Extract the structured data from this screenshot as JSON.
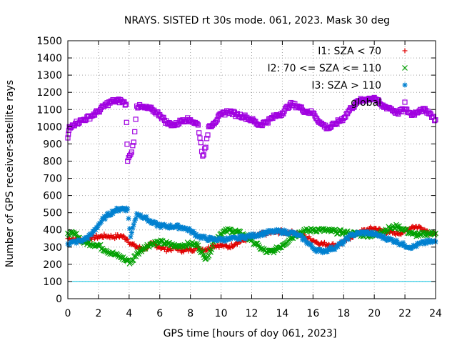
{
  "chart_data": {
    "type": "scatter",
    "title": "NRAYS. SISTED rt 30s mode. 061, 2023. Mask 30 deg",
    "xlabel": "GPS time [hours of doy 061, 2023]",
    "ylabel": "Number of GPS receiver-satellite rays",
    "xlim": [
      0,
      24
    ],
    "ylim": [
      0,
      1500
    ],
    "xticks": [
      0,
      2,
      4,
      6,
      8,
      10,
      12,
      14,
      16,
      18,
      20,
      22,
      24
    ],
    "yticks": [
      0,
      100,
      200,
      300,
      400,
      500,
      600,
      700,
      800,
      900,
      1000,
      1100,
      1200,
      1300,
      1400,
      1500
    ],
    "reference_line": {
      "y": 100,
      "color": "#00c0e0"
    },
    "legend_position": "top-right",
    "series": [
      {
        "name": "I1: SZA < 70",
        "marker": "+",
        "color": "#e00000",
        "points": [
          [
            0,
            350
          ],
          [
            0.5,
            345
          ],
          [
            1,
            335
          ],
          [
            1.5,
            355
          ],
          [
            2,
            360
          ],
          [
            2.5,
            365
          ],
          [
            3,
            360
          ],
          [
            3.5,
            365
          ],
          [
            3.9,
            345
          ],
          [
            4.1,
            320
          ],
          [
            4.5,
            300
          ],
          [
            5,
            290
          ],
          [
            5.5,
            320
          ],
          [
            6,
            300
          ],
          [
            6.5,
            285
          ],
          [
            7,
            295
          ],
          [
            7.5,
            280
          ],
          [
            8,
            285
          ],
          [
            8.5,
            295
          ],
          [
            9,
            285
          ],
          [
            9.5,
            310
          ],
          [
            10,
            310
          ],
          [
            10.5,
            300
          ],
          [
            11,
            325
          ],
          [
            11.5,
            340
          ],
          [
            12,
            360
          ],
          [
            12.5,
            370
          ],
          [
            13,
            380
          ],
          [
            13.5,
            385
          ],
          [
            14,
            390
          ],
          [
            14.5,
            385
          ],
          [
            15,
            380
          ],
          [
            15.5,
            360
          ],
          [
            16,
            340
          ],
          [
            16.5,
            320
          ],
          [
            17,
            315
          ],
          [
            17.5,
            310
          ],
          [
            18,
            330
          ],
          [
            18.5,
            360
          ],
          [
            19,
            385
          ],
          [
            19.5,
            400
          ],
          [
            20,
            410
          ],
          [
            20.5,
            395
          ],
          [
            21,
            385
          ],
          [
            21.5,
            380
          ],
          [
            22,
            390
          ],
          [
            22.5,
            420
          ],
          [
            23,
            415
          ],
          [
            23.5,
            390
          ],
          [
            24,
            370
          ]
        ]
      },
      {
        "name": "I2: 70 <= SZA <= 110",
        "marker": "x",
        "color": "#00a000",
        "points": [
          [
            0,
            380
          ],
          [
            0.5,
            375
          ],
          [
            1,
            330
          ],
          [
            1.5,
            320
          ],
          [
            2,
            310
          ],
          [
            2.5,
            280
          ],
          [
            3,
            260
          ],
          [
            3.5,
            240
          ],
          [
            3.9,
            220
          ],
          [
            4.1,
            210
          ],
          [
            4.5,
            260
          ],
          [
            5,
            300
          ],
          [
            5.5,
            320
          ],
          [
            6,
            330
          ],
          [
            6.5,
            320
          ],
          [
            7,
            305
          ],
          [
            7.5,
            310
          ],
          [
            8,
            320
          ],
          [
            8.5,
            310
          ],
          [
            8.9,
            240
          ],
          [
            9.2,
            250
          ],
          [
            9.5,
            330
          ],
          [
            10,
            380
          ],
          [
            10.5,
            400
          ],
          [
            11,
            390
          ],
          [
            11.5,
            370
          ],
          [
            12,
            340
          ],
          [
            12.5,
            300
          ],
          [
            13,
            270
          ],
          [
            13.5,
            280
          ],
          [
            14,
            310
          ],
          [
            14.5,
            350
          ],
          [
            15,
            380
          ],
          [
            15.5,
            395
          ],
          [
            16,
            400
          ],
          [
            16.5,
            400
          ],
          [
            17,
            395
          ],
          [
            17.5,
            390
          ],
          [
            18,
            385
          ],
          [
            18.5,
            380
          ],
          [
            19,
            375
          ],
          [
            19.5,
            370
          ],
          [
            20,
            370
          ],
          [
            20.5,
            390
          ],
          [
            21,
            410
          ],
          [
            21.5,
            420
          ],
          [
            22,
            400
          ],
          [
            22.5,
            375
          ],
          [
            23,
            370
          ],
          [
            23.5,
            380
          ],
          [
            24,
            380
          ]
        ]
      },
      {
        "name": "I3: SZA > 110",
        "marker": "*",
        "color": "#0080d0",
        "points": [
          [
            0,
            320
          ],
          [
            0.5,
            330
          ],
          [
            1,
            340
          ],
          [
            1.5,
            370
          ],
          [
            2,
            430
          ],
          [
            2.5,
            480
          ],
          [
            3,
            510
          ],
          [
            3.5,
            525
          ],
          [
            3.9,
            520
          ],
          [
            4.1,
            360
          ],
          [
            4.3,
            430
          ],
          [
            4.5,
            495
          ],
          [
            5,
            475
          ],
          [
            5.5,
            440
          ],
          [
            6,
            425
          ],
          [
            6.5,
            420
          ],
          [
            7,
            420
          ],
          [
            7.5,
            415
          ],
          [
            8,
            395
          ],
          [
            8.5,
            365
          ],
          [
            9,
            350
          ],
          [
            9.5,
            345
          ],
          [
            10,
            345
          ],
          [
            10.5,
            345
          ],
          [
            11,
            350
          ],
          [
            11.5,
            360
          ],
          [
            12,
            365
          ],
          [
            12.5,
            375
          ],
          [
            13,
            385
          ],
          [
            13.5,
            390
          ],
          [
            14,
            390
          ],
          [
            14.5,
            385
          ],
          [
            15,
            370
          ],
          [
            15.5,
            340
          ],
          [
            16,
            295
          ],
          [
            16.5,
            275
          ],
          [
            17,
            285
          ],
          [
            17.5,
            300
          ],
          [
            18,
            330
          ],
          [
            18.5,
            370
          ],
          [
            19,
            380
          ],
          [
            19.5,
            385
          ],
          [
            20,
            375
          ],
          [
            20.5,
            360
          ],
          [
            21,
            345
          ],
          [
            21.5,
            330
          ],
          [
            22,
            310
          ],
          [
            22.5,
            300
          ],
          [
            23,
            320
          ],
          [
            23.5,
            330
          ],
          [
            24,
            330
          ]
        ]
      },
      {
        "name": "global",
        "marker": "square",
        "color": "#a000e0",
        "points": [
          [
            0,
            935
          ],
          [
            0.1,
            1000
          ],
          [
            0.3,
            1010
          ],
          [
            0.5,
            1020
          ],
          [
            1,
            1040
          ],
          [
            1.5,
            1060
          ],
          [
            2,
            1090
          ],
          [
            2.5,
            1130
          ],
          [
            3,
            1150
          ],
          [
            3.5,
            1150
          ],
          [
            3.8,
            1130
          ],
          [
            3.9,
            800
          ],
          [
            4.1,
            840
          ],
          [
            4.3,
            910
          ],
          [
            4.5,
            1120
          ],
          [
            5,
            1110
          ],
          [
            5.5,
            1100
          ],
          [
            6,
            1070
          ],
          [
            6.5,
            1020
          ],
          [
            7,
            1010
          ],
          [
            7.5,
            1040
          ],
          [
            8,
            1040
          ],
          [
            8.5,
            1010
          ],
          [
            8.8,
            830
          ],
          [
            9,
            880
          ],
          [
            9.2,
            1000
          ],
          [
            9.5,
            1020
          ],
          [
            10,
            1070
          ],
          [
            10.5,
            1090
          ],
          [
            11,
            1070
          ],
          [
            11.5,
            1060
          ],
          [
            12,
            1040
          ],
          [
            12.5,
            1010
          ],
          [
            13,
            1030
          ],
          [
            13.5,
            1060
          ],
          [
            14,
            1080
          ],
          [
            14.5,
            1130
          ],
          [
            15,
            1120
          ],
          [
            15.5,
            1090
          ],
          [
            16,
            1080
          ],
          [
            16.5,
            1020
          ],
          [
            17,
            990
          ],
          [
            17.5,
            1020
          ],
          [
            18,
            1050
          ],
          [
            18.5,
            1110
          ],
          [
            19,
            1150
          ],
          [
            19.5,
            1160
          ],
          [
            20,
            1170
          ],
          [
            20.5,
            1120
          ],
          [
            21,
            1110
          ],
          [
            21.5,
            1080
          ],
          [
            22,
            1100
          ],
          [
            22.5,
            1070
          ],
          [
            23,
            1100
          ],
          [
            23.5,
            1090
          ],
          [
            24,
            1040
          ]
        ]
      }
    ]
  }
}
